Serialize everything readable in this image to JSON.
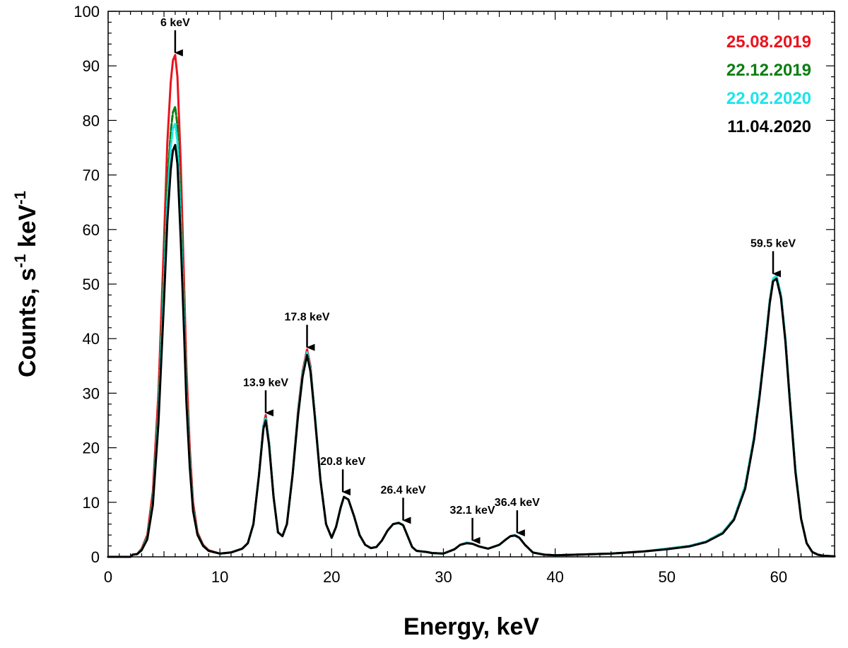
{
  "chart_data": {
    "type": "line",
    "title": "",
    "xlabel": "Energy, keV",
    "ylabel": "Counts, s",
    "ylabel_exp1": "-1",
    "ylabel_mid": " keV",
    "ylabel_exp2": "-1",
    "xlim": [
      0,
      65
    ],
    "ylim": [
      0,
      100
    ],
    "xticks": [
      0,
      10,
      20,
      30,
      40,
      50,
      60
    ],
    "yticks": [
      0,
      10,
      20,
      30,
      40,
      50,
      60,
      70,
      80,
      90,
      100
    ],
    "grid": false,
    "legend_position": "top-right",
    "x": [
      0,
      2.0,
      2.2,
      2.6,
      3.0,
      3.5,
      4.0,
      4.5,
      5.0,
      5.3,
      5.6,
      5.8,
      6.0,
      6.2,
      6.5,
      6.8,
      7.0,
      7.3,
      7.6,
      8.0,
      8.5,
      9.0,
      10.0,
      11.0,
      12.0,
      12.5,
      13.0,
      13.5,
      13.9,
      14.1,
      14.4,
      14.8,
      15.2,
      15.6,
      16.0,
      16.5,
      17.0,
      17.4,
      17.8,
      18.1,
      18.5,
      19.0,
      19.5,
      20.0,
      20.4,
      20.8,
      21.1,
      21.5,
      22.0,
      22.5,
      23.0,
      23.5,
      24.0,
      24.5,
      25.0,
      25.5,
      26.0,
      26.4,
      26.8,
      27.2,
      27.6,
      28.0,
      28.5,
      29.0,
      30.0,
      31.0,
      31.5,
      32.1,
      32.6,
      33.2,
      34.0,
      35.0,
      35.6,
      36.0,
      36.4,
      36.8,
      37.3,
      38.0,
      39.0,
      40.0,
      42.0,
      45.0,
      48.0,
      50.0,
      52.0,
      53.5,
      55.0,
      56.0,
      57.0,
      57.8,
      58.3,
      58.8,
      59.2,
      59.5,
      59.8,
      60.2,
      60.6,
      61.0,
      61.5,
      62.0,
      62.5,
      63.0,
      63.5,
      64.0,
      65.0
    ],
    "series": [
      {
        "name": "25.08.2019",
        "color": "#e8141e",
        "y": [
          0,
          0,
          0.4,
          0.5,
          1.5,
          4,
          12,
          30,
          58,
          76,
          87,
          91,
          92,
          88,
          72,
          50,
          35,
          20,
          10,
          4.5,
          2.2,
          1.2,
          0.6,
          0.8,
          1.5,
          2.5,
          6,
          15,
          24,
          26,
          21,
          11,
          4.5,
          3.8,
          6,
          15,
          27,
          34,
          38,
          35,
          26,
          14,
          6,
          3.5,
          5.5,
          9,
          11,
          10.5,
          7.5,
          4,
          2.2,
          1.6,
          1.8,
          3,
          4.8,
          6,
          6.3,
          5.8,
          3.8,
          1.8,
          1.1,
          1.0,
          0.9,
          0.7,
          0.6,
          1.4,
          2.2,
          2.6,
          2.4,
          1.9,
          1.5,
          2.2,
          3.2,
          3.8,
          4.0,
          3.5,
          2.2,
          0.8,
          0.4,
          0.3,
          0.4,
          0.6,
          1.0,
          1.5,
          2.0,
          2.8,
          4.5,
          7,
          13,
          22,
          30,
          39,
          47,
          51,
          51.5,
          48,
          40,
          29,
          16,
          7,
          2.5,
          0.9,
          0.4,
          0.2,
          0.1
        ],
        "style": "solid"
      },
      {
        "name": "22.12.2019",
        "color": "#0b7e12",
        "y": [
          0,
          0,
          0.4,
          0.5,
          1.4,
          3.6,
          10.5,
          27,
          52,
          68,
          78,
          81.5,
          82.5,
          79,
          64,
          45,
          31,
          18,
          9,
          4.2,
          2.1,
          1.1,
          0.6,
          0.8,
          1.5,
          2.5,
          6,
          15,
          24,
          25.5,
          21,
          11,
          4.5,
          3.8,
          6,
          15,
          26.5,
          33.5,
          37.5,
          34.5,
          26,
          14,
          6,
          3.5,
          5.5,
          9,
          11,
          10.5,
          7.5,
          4,
          2.2,
          1.6,
          1.8,
          3,
          4.8,
          6,
          6.3,
          5.8,
          3.8,
          1.8,
          1.1,
          1.0,
          0.9,
          0.7,
          0.6,
          1.4,
          2.2,
          2.6,
          2.4,
          1.9,
          1.5,
          2.2,
          3.2,
          3.8,
          4.0,
          3.5,
          2.2,
          0.8,
          0.4,
          0.3,
          0.4,
          0.6,
          1.0,
          1.5,
          2.0,
          2.8,
          4.5,
          7,
          13,
          22,
          30,
          39,
          47,
          51,
          51.5,
          48,
          40,
          29,
          16,
          7,
          2.5,
          0.9,
          0.4,
          0.2,
          0.1
        ],
        "style": "dashed"
      },
      {
        "name": "22.02.2020",
        "color": "#19e5ea",
        "y": [
          0,
          0,
          0.4,
          0.5,
          1.3,
          3.4,
          10,
          26,
          50,
          65,
          75,
          78.5,
          79.5,
          76,
          61.5,
          43,
          30,
          17.5,
          8.8,
          4.1,
          2.0,
          1.1,
          0.6,
          0.8,
          1.5,
          2.5,
          6,
          15,
          24,
          25.5,
          21,
          11,
          4.5,
          3.8,
          6,
          15,
          26.5,
          33.5,
          37.5,
          34.5,
          26,
          14,
          6,
          3.5,
          5.5,
          9,
          11,
          10.5,
          7.5,
          4,
          2.2,
          1.6,
          1.8,
          3,
          4.8,
          6,
          6.3,
          5.8,
          3.8,
          1.8,
          1.1,
          1.0,
          0.9,
          0.7,
          0.6,
          1.4,
          2.2,
          2.6,
          2.4,
          1.9,
          1.5,
          2.2,
          3.2,
          3.8,
          4.0,
          3.5,
          2.2,
          0.8,
          0.4,
          0.3,
          0.4,
          0.6,
          1.0,
          1.5,
          2.0,
          2.8,
          4.5,
          7,
          13,
          22,
          30,
          39,
          47,
          51,
          51.5,
          48,
          40,
          29,
          16,
          7,
          2.5,
          0.9,
          0.4,
          0.2,
          0.1
        ],
        "style": "dashed"
      },
      {
        "name": "11.04.2020",
        "color": "#000000",
        "y": [
          0,
          0,
          0.4,
          0.5,
          1.2,
          3.2,
          9.5,
          24.5,
          47,
          61.5,
          71,
          74.5,
          75.5,
          72,
          58,
          41,
          28.5,
          16.5,
          8.4,
          4.0,
          2.0,
          1.1,
          0.6,
          0.8,
          1.5,
          2.5,
          6,
          15,
          23.5,
          25,
          20.5,
          11,
          4.5,
          3.8,
          6,
          15,
          26,
          33,
          37,
          34,
          25.5,
          14,
          6,
          3.5,
          5.5,
          9,
          11,
          10.5,
          7.5,
          4,
          2.2,
          1.6,
          1.8,
          3,
          4.8,
          6,
          6.2,
          5.8,
          3.8,
          1.8,
          1.1,
          1.0,
          0.9,
          0.7,
          0.6,
          1.4,
          2.2,
          2.5,
          2.4,
          1.9,
          1.5,
          2.2,
          3.2,
          3.8,
          3.9,
          3.5,
          2.2,
          0.8,
          0.4,
          0.3,
          0.4,
          0.6,
          1.0,
          1.4,
          1.9,
          2.7,
          4.3,
          6.8,
          12.5,
          21.5,
          29.5,
          38.5,
          46.5,
          50.5,
          51,
          47.5,
          39.5,
          28.5,
          15.5,
          7,
          2.5,
          0.9,
          0.4,
          0.2,
          0.1
        ],
        "style": "solid"
      }
    ],
    "annotations": [
      {
        "label": "6 keV",
        "x": 6.0,
        "y": 92
      },
      {
        "label": "13.9 keV",
        "x": 14.1,
        "y": 26
      },
      {
        "label": "17.8 keV",
        "x": 17.8,
        "y": 38
      },
      {
        "label": "20.8 keV",
        "x": 21.0,
        "y": 11.5
      },
      {
        "label": "26.4 keV",
        "x": 26.4,
        "y": 6.3
      },
      {
        "label": "32.1 keV",
        "x": 32.6,
        "y": 2.6
      },
      {
        "label": "36.4 keV",
        "x": 36.6,
        "y": 4.0
      },
      {
        "label": "59.5 keV",
        "x": 59.5,
        "y": 51.5
      }
    ]
  }
}
